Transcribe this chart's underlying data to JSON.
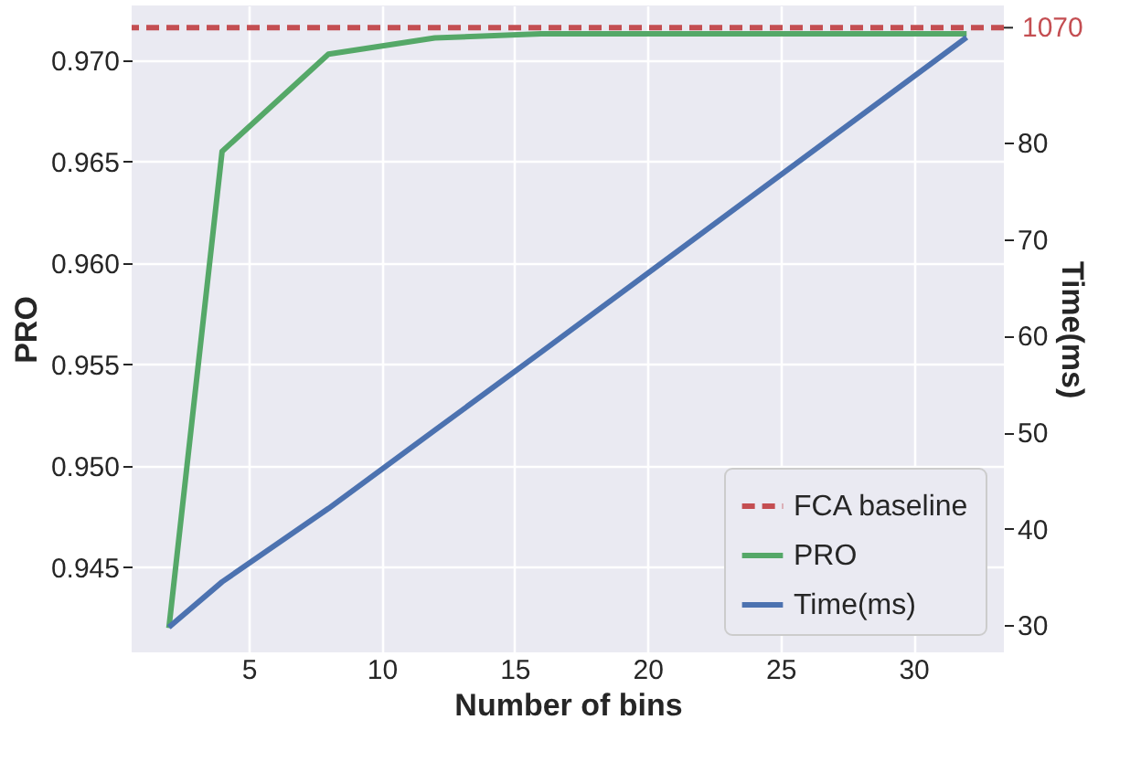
{
  "chart_data": {
    "type": "line",
    "xlabel": "Number of bins",
    "ylabel": "PRO",
    "y2label": "Time(ms)",
    "x": [
      2,
      4,
      8,
      12,
      16,
      32
    ],
    "series": [
      {
        "name": "PRO",
        "color": "#55a868",
        "values": [
          0.942,
          0.9655,
          0.9703,
          0.9711,
          0.9713,
          0.9713
        ]
      },
      {
        "name": "Time(ms)",
        "color": "#4c72b0",
        "axis": "y2",
        "values": [
          29.8,
          34.5,
          42.1,
          50.2,
          58.3,
          90.9
        ]
      }
    ],
    "xlim": [
      0.6,
      33.4
    ],
    "xticks": [
      5,
      10,
      15,
      20,
      25,
      30
    ],
    "ylim": [
      0.9408,
      0.9727
    ],
    "yticks": [
      {
        "value": 0.945,
        "label": "0.945"
      },
      {
        "value": 0.95,
        "label": "0.950"
      },
      {
        "value": 0.955,
        "label": "0.955"
      },
      {
        "value": 0.96,
        "label": "0.960"
      },
      {
        "value": 0.965,
        "label": "0.965"
      },
      {
        "value": 0.97,
        "label": "0.970"
      }
    ],
    "y2lim": [
      27.2,
      94.2
    ],
    "y2ticks": [
      30,
      40,
      50,
      60,
      70,
      80
    ],
    "annotations": [
      "1070"
    ],
    "ref_lines": [
      {
        "axis": "y2",
        "value": 91.9,
        "label": "FCA baseline",
        "color": "#c44e52",
        "line_style": "dashed"
      }
    ],
    "grid": true,
    "legend": "bottom right"
  }
}
